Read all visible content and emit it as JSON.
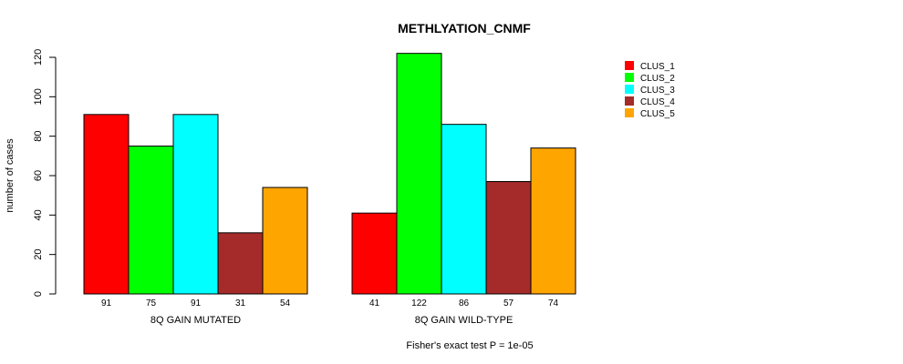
{
  "chart_data": {
    "type": "bar",
    "title": "METHLYATION_CNMF",
    "ylabel": "number of cases",
    "xlabel": "",
    "subtitle": "Fisher's exact test P = 1e-05",
    "ylim": [
      0,
      120
    ],
    "yticks": [
      0,
      20,
      40,
      60,
      80,
      100,
      120
    ],
    "groups": [
      "8Q GAIN MUTATED",
      "8Q GAIN WILD-TYPE"
    ],
    "series": [
      {
        "name": "CLUS_1",
        "color": "#ff0000",
        "values": [
          91,
          41
        ]
      },
      {
        "name": "CLUS_2",
        "color": "#00ff00",
        "values": [
          75,
          122
        ]
      },
      {
        "name": "CLUS_3",
        "color": "#00ffff",
        "values": [
          91,
          86
        ]
      },
      {
        "name": "CLUS_4",
        "color": "#a52a2a",
        "values": [
          31,
          57
        ]
      },
      {
        "name": "CLUS_5",
        "color": "#ffa500",
        "values": [
          54,
          74
        ]
      }
    ],
    "legend_position": "top-right"
  }
}
